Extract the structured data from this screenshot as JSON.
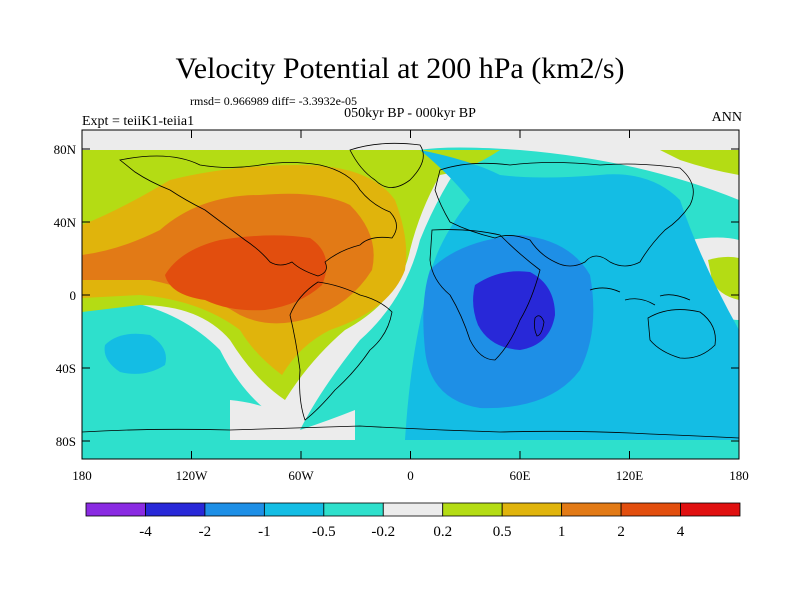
{
  "title": "Velocity Potential at 200 hPa (km2/s)",
  "stats": "rmsd= 0.966989 diff= -3.3932e-05",
  "experiment": "Expt = teiiK1-teiia1",
  "period": "050kyr BP - 000kyr BP",
  "season": "ANN",
  "lon_ticks": [
    "180",
    "120W",
    "60W",
    "0",
    "60E",
    "120E",
    "180"
  ],
  "lat_ticks": [
    "80N",
    "40N",
    "0",
    "40S",
    "80S"
  ],
  "colorbar": {
    "labels": [
      "-4",
      "-2",
      "-1",
      "-0.5",
      "-0.2",
      "0.2",
      "0.5",
      "1",
      "2",
      "4"
    ],
    "colors": [
      "#8a2be2",
      "#2828d8",
      "#1e8fe6",
      "#14bde4",
      "#2ee0cc",
      "#ececec",
      "#b4dc14",
      "#e0b40c",
      "#e27a16",
      "#e24e0e",
      "#e01010"
    ]
  },
  "map_colors": {
    "neg4": "#2828d8",
    "neg2": "#1e8fe6",
    "neg1": "#14bde4",
    "neg05": "#2ee0cc",
    "near0": "#ececec",
    "pos02": "#b4dc14",
    "pos05": "#e0b40c",
    "pos1": "#e27a16",
    "pos2": "#e24e0e"
  }
}
